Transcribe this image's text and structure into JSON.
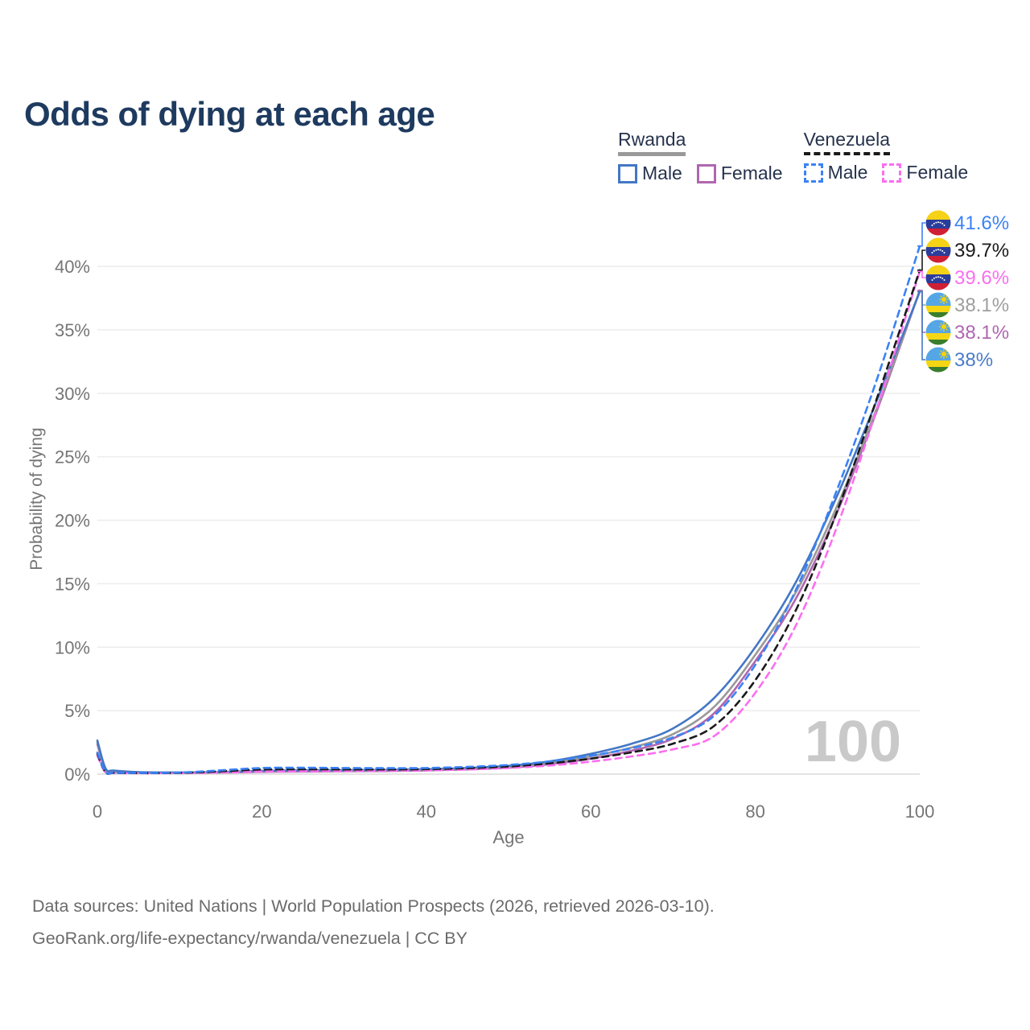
{
  "page": {
    "title": "Odds of dying at each age"
  },
  "legend": {
    "groups": [
      {
        "title": "Rwanda",
        "line_style": "solid",
        "underline_color": "#999999",
        "items": [
          {
            "label": "Male",
            "color": "#4477c4"
          },
          {
            "label": "Female",
            "color": "#b066b0"
          }
        ]
      },
      {
        "title": "Venezuela",
        "line_style": "dashed",
        "underline_color": "#1a1a1a",
        "items": [
          {
            "label": "Male",
            "color": "#3b82f6"
          },
          {
            "label": "Female",
            "color": "#fb6ef0"
          }
        ]
      }
    ]
  },
  "chart_data": {
    "type": "line",
    "title": "Odds of dying at each age",
    "xlabel": "Age",
    "ylabel": "Probability of dying",
    "x_ticks": [
      0,
      20,
      40,
      60,
      80,
      100
    ],
    "y_ticks": [
      "0%",
      "5%",
      "10%",
      "15%",
      "20%",
      "25%",
      "30%",
      "35%",
      "40%"
    ],
    "y_tick_values": [
      0,
      5,
      10,
      15,
      20,
      25,
      30,
      35,
      40
    ],
    "xlim": [
      0,
      100
    ],
    "ylim": [
      0,
      43
    ],
    "grid": true,
    "legend_position": "top-right",
    "watermark": "100",
    "ages": [
      0,
      1,
      2,
      5,
      10,
      15,
      20,
      25,
      30,
      35,
      40,
      45,
      50,
      55,
      60,
      65,
      70,
      75,
      80,
      85,
      90,
      95,
      100
    ],
    "series": [
      {
        "id": "rw_female",
        "name": "Rwanda Female",
        "country": "Rwanda",
        "sex": "Female",
        "flag": "rw",
        "line": "solid",
        "color": "#b066b0",
        "end_label": "38.1%",
        "label_color": "#b066b0",
        "values": [
          2.35,
          0.36,
          0.22,
          0.12,
          0.1,
          0.12,
          0.18,
          0.2,
          0.22,
          0.24,
          0.29,
          0.37,
          0.5,
          0.78,
          1.22,
          1.85,
          2.8,
          4.8,
          8.9,
          13.9,
          20.7,
          29.0,
          38.1
        ]
      },
      {
        "id": "rw_both",
        "name": "Rwanda Both sexes",
        "country": "Rwanda",
        "sex": "Both",
        "flag": "rw",
        "line": "solid",
        "color": "#999999",
        "end_label": "38.1%",
        "label_color": "#9e9e9e",
        "values": [
          2.5,
          0.4,
          0.25,
          0.14,
          0.11,
          0.14,
          0.22,
          0.25,
          0.26,
          0.28,
          0.33,
          0.42,
          0.57,
          0.88,
          1.4,
          2.1,
          3.15,
          5.3,
          9.4,
          14.4,
          21.2,
          29.2,
          38.1
        ]
      },
      {
        "id": "rw_male",
        "name": "Rwanda Male",
        "country": "Rwanda",
        "sex": "Male",
        "flag": "rw",
        "line": "solid",
        "color": "#4477c4",
        "end_label": "38%",
        "label_color": "#4a7cc9",
        "values": [
          2.65,
          0.45,
          0.28,
          0.16,
          0.13,
          0.16,
          0.26,
          0.3,
          0.31,
          0.33,
          0.38,
          0.48,
          0.65,
          1.0,
          1.6,
          2.4,
          3.6,
          6.0,
          10.0,
          15.2,
          22.0,
          29.8,
          38.0
        ]
      },
      {
        "id": "ve_female",
        "name": "Venezuela Female",
        "country": "Venezuela",
        "sex": "Female",
        "flag": "ve",
        "line": "dashed",
        "color": "#fb6ef0",
        "end_label": "39.6%",
        "label_color": "#fb6ef0",
        "values": [
          1.45,
          0.12,
          0.09,
          0.07,
          0.08,
          0.13,
          0.2,
          0.23,
          0.25,
          0.27,
          0.3,
          0.37,
          0.48,
          0.68,
          0.98,
          1.4,
          1.95,
          3.0,
          6.4,
          11.8,
          19.6,
          29.2,
          39.6
        ]
      },
      {
        "id": "ve_both",
        "name": "Venezuela Both sexes",
        "country": "Venezuela",
        "sex": "Both",
        "flag": "ve",
        "line": "dashed",
        "color": "#1a1a1a",
        "end_label": "39.7%",
        "label_color": "#1a1a1a",
        "values": [
          1.6,
          0.14,
          0.1,
          0.08,
          0.1,
          0.22,
          0.36,
          0.38,
          0.37,
          0.37,
          0.39,
          0.47,
          0.6,
          0.85,
          1.22,
          1.72,
          2.4,
          3.8,
          7.4,
          13.0,
          20.8,
          30.0,
          39.7
        ]
      },
      {
        "id": "ve_male",
        "name": "Venezuela Male",
        "country": "Venezuela",
        "sex": "Male",
        "flag": "ve",
        "line": "dashed",
        "color": "#3b82f6",
        "end_label": "41.6%",
        "label_color": "#3b82f6",
        "values": [
          1.7,
          0.16,
          0.11,
          0.09,
          0.12,
          0.3,
          0.48,
          0.5,
          0.48,
          0.47,
          0.48,
          0.57,
          0.72,
          1.0,
          1.45,
          2.05,
          2.9,
          4.6,
          8.6,
          14.6,
          22.5,
          31.5,
          41.6
        ]
      }
    ],
    "end_label_order": [
      "ve_male",
      "ve_both",
      "ve_female",
      "rw_both",
      "rw_female",
      "rw_male"
    ]
  },
  "footer": {
    "line1": "Data sources: United Nations | World Population Prospects (2026, retrieved 2026-03-10).",
    "line2": "GeoRank.org/life-expectancy/rwanda/venezuela | CC BY"
  }
}
